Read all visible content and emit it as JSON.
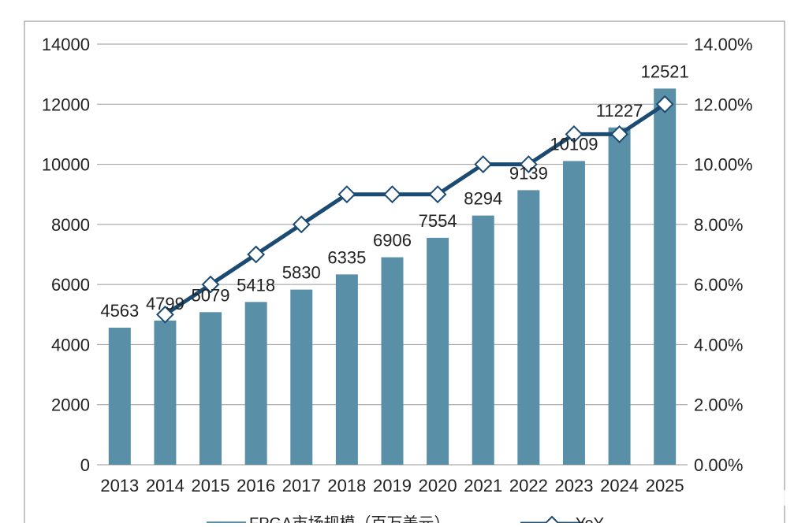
{
  "chart_data": {
    "type": "bar",
    "categories": [
      "2013",
      "2014",
      "2015",
      "2016",
      "2017",
      "2018",
      "2019",
      "2020",
      "2021",
      "2022",
      "2023",
      "2024",
      "2025"
    ],
    "series": [
      {
        "name": "FPGA市场规模（百万美元）",
        "type": "bar",
        "axis": "left",
        "values": [
          4563,
          4799,
          5079,
          5418,
          5830,
          6335,
          6906,
          7554,
          8294,
          9139,
          10109,
          11227,
          12521
        ],
        "color": "#5a8fa8"
      },
      {
        "name": "YoY",
        "type": "line",
        "axis": "right",
        "values": [
          null,
          0.05,
          0.06,
          0.07,
          0.08,
          0.09,
          0.09,
          0.09,
          0.1,
          0.1,
          0.11,
          0.11,
          0.12
        ],
        "color": "#1b4a72"
      }
    ],
    "y_left": {
      "min": 0,
      "max": 14000,
      "ticks": [
        "0",
        "2000",
        "4000",
        "6000",
        "8000",
        "10000",
        "12000",
        "14000"
      ]
    },
    "y_right": {
      "min": 0,
      "max": 0.14,
      "ticks": [
        "0.00%",
        "2.00%",
        "4.00%",
        "6.00%",
        "8.00%",
        "10.00%",
        "12.00%",
        "14.00%"
      ]
    },
    "bar_labels": [
      "4563",
      "4799",
      "5079",
      "5418",
      "5830",
      "6335",
      "6906",
      "7554",
      "8294",
      "9139",
      "10109",
      "11227",
      "12521"
    ],
    "grid": true,
    "legend_position": "bottom"
  },
  "watermark": "头条 @灵巧光束"
}
